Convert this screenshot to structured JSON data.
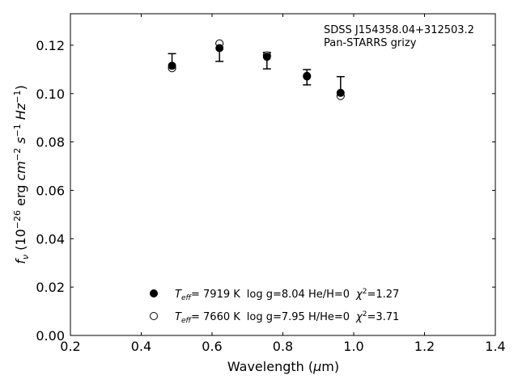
{
  "chart_data": {
    "type": "scatter",
    "annotations": [
      "SDSS J154358.04+312503.2",
      "Pan-STARRS grizy"
    ],
    "xlabel": "Wavelength (μm)",
    "ylabel": "fν (10⁻²⁶ erg cm⁻² s⁻¹ Hz⁻¹)",
    "xlim": [
      0.2,
      1.4
    ],
    "ylim": [
      0.0,
      0.133
    ],
    "xticks": [
      "0.2",
      "0.4",
      "0.6",
      "0.8",
      "1.0",
      "1.2",
      "1.4"
    ],
    "yticks": [
      "0.00",
      "0.02",
      "0.04",
      "0.06",
      "0.08",
      "0.10",
      "0.12"
    ],
    "observed": {
      "x": [
        0.487,
        0.621,
        0.755,
        0.868,
        0.963
      ],
      "y": [
        0.1115,
        0.1188,
        0.1152,
        0.1071,
        0.1003
      ],
      "yerr_low": [
        0.001,
        0.0055,
        0.005,
        0.0035,
        0.0013
      ],
      "yerr_high": [
        0.005,
        0.0017,
        0.0018,
        0.0028,
        0.0067
      ]
    },
    "series": [
      {
        "name": "T_eff= 7919 K log g=8.04 He/H=0 χ²=1.27",
        "marker": "filled-circle",
        "x": [
          0.487,
          0.621,
          0.755,
          0.868,
          0.963
        ],
        "y": [
          0.1115,
          0.1188,
          0.1152,
          0.1071,
          0.1003
        ]
      },
      {
        "name": "T_eff= 7660 K log g=7.95 H/He=0 χ²=3.71",
        "marker": "open-circle",
        "x": [
          0.487,
          0.621,
          0.755,
          0.868,
          0.963
        ],
        "y": [
          0.1105,
          0.1207,
          0.1158,
          0.1073,
          0.099
        ]
      }
    ],
    "legend": [
      {
        "marker": "filled-circle",
        "teff_label": "T",
        "teff_sub": "eff",
        "teff_value": "=  7919 K",
        "rest": "log g=8.04  He/H=0",
        "chi_label": "χ",
        "chi_sup": "2",
        "chi_value": "=1.27"
      },
      {
        "marker": "open-circle",
        "teff_label": "T",
        "teff_sub": "eff",
        "teff_value": "=  7660 K",
        "rest": "log g=7.95  H/He=0",
        "chi_label": "χ",
        "chi_sup": "2",
        "chi_value": "=3.71"
      }
    ],
    "legend_position": "lower-center",
    "grid": false,
    "colors": {
      "marker": "#000000",
      "background": "#ffffff"
    }
  }
}
